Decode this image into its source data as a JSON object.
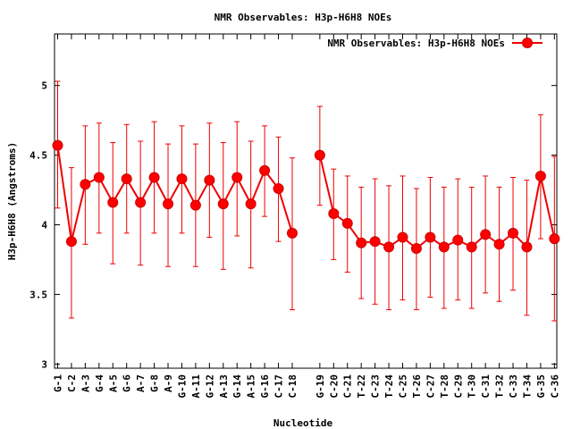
{
  "chart_data": {
    "type": "line",
    "title": "NMR Observables: H3p-H6H8 NOEs",
    "xlabel": "Nucleotide",
    "ylabel": "H3p-H6H8 (Angstroms)",
    "ylim": [
      2.97,
      5.37
    ],
    "yticks": [
      3,
      3.5,
      4,
      4.5,
      5
    ],
    "grid": false,
    "legend_position": "top-right",
    "series": [
      {
        "name": "NMR Observables: H3p-H6H8 NOEs",
        "color": "#ff0000",
        "marker": "circle",
        "segments": [
          {
            "categories": [
              "G-1",
              "C-2",
              "A-3",
              "G-4",
              "A-5",
              "G-6",
              "A-7",
              "G-8",
              "A-9",
              "G-10",
              "A-11",
              "G-12",
              "A-13",
              "G-14",
              "A-15",
              "G-16",
              "C-17",
              "C-18"
            ],
            "values": [
              4.57,
              3.88,
              4.29,
              4.34,
              4.16,
              4.33,
              4.16,
              4.34,
              4.15,
              4.33,
              4.14,
              4.32,
              4.15,
              4.34,
              4.15,
              4.39,
              4.26,
              3.94
            ],
            "err_low": [
              4.12,
              3.33,
              3.86,
              3.94,
              3.72,
              3.94,
              3.71,
              3.94,
              3.7,
              3.94,
              3.7,
              3.91,
              3.68,
              3.92,
              3.69,
              4.06,
              3.88,
              3.39
            ],
            "err_high": [
              5.03,
              4.41,
              4.71,
              4.73,
              4.59,
              4.72,
              4.6,
              4.74,
              4.58,
              4.71,
              4.58,
              4.73,
              4.59,
              4.74,
              4.6,
              4.71,
              4.63,
              4.48
            ]
          },
          {
            "categories": [
              "G-19",
              "C-20",
              "C-21",
              "T-22",
              "C-23",
              "T-24",
              "C-25",
              "T-26",
              "C-27",
              "T-28",
              "C-29",
              "T-30",
              "C-31",
              "T-32",
              "C-33",
              "T-34",
              "G-35",
              "C-36"
            ],
            "values": [
              4.5,
              4.08,
              4.01,
              3.87,
              3.88,
              3.84,
              3.91,
              3.83,
              3.91,
              3.84,
              3.89,
              3.84,
              3.93,
              3.86,
              3.94,
              3.84,
              4.35,
              3.9
            ],
            "err_low": [
              4.14,
              3.75,
              3.66,
              3.47,
              3.43,
              3.39,
              3.46,
              3.39,
              3.48,
              3.4,
              3.46,
              3.4,
              3.51,
              3.45,
              3.53,
              3.35,
              3.9,
              3.31
            ],
            "err_high": [
              4.85,
              4.4,
              4.35,
              4.27,
              4.33,
              4.28,
              4.35,
              4.26,
              4.34,
              4.27,
              4.33,
              4.27,
              4.35,
              4.27,
              4.34,
              4.32,
              4.79,
              4.49
            ]
          }
        ]
      }
    ]
  }
}
